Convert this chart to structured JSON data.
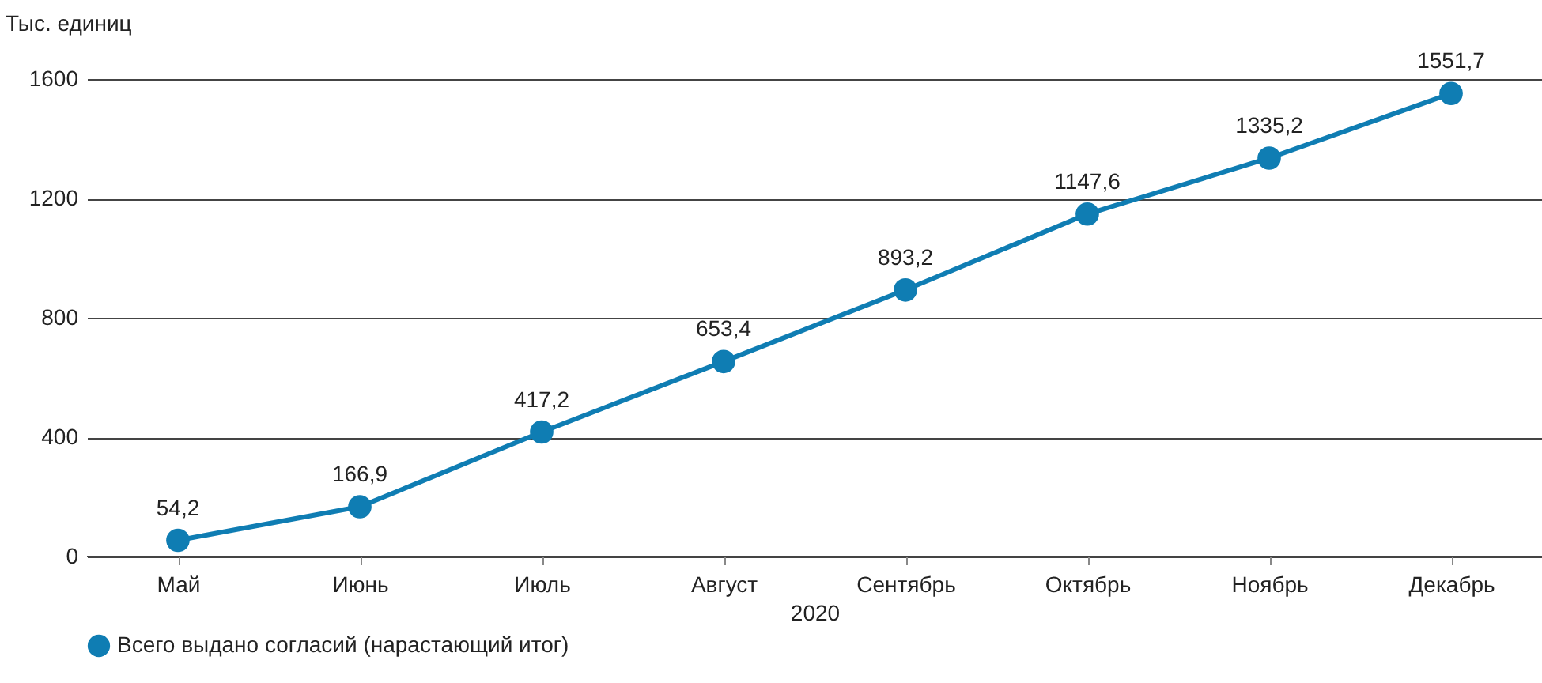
{
  "chart_data": {
    "type": "line",
    "ylabel": "Тыс. единиц",
    "xlabel": "2020",
    "categories": [
      "Май",
      "Июнь",
      "Июль",
      "Август",
      "Сентябрь",
      "Октябрь",
      "Ноябрь",
      "Декабрь"
    ],
    "series": [
      {
        "name": "Всего выдано согласий (нарастающий итог)",
        "color": "#0f7db3",
        "values": [
          54.2,
          166.9,
          417.2,
          653.4,
          893.2,
          1147.6,
          1335.2,
          1551.7
        ],
        "value_labels": [
          "54,2",
          "166,9",
          "417,2",
          "653,4",
          "893,2",
          "1147,6",
          "1335,2",
          "1551,7"
        ]
      }
    ],
    "ylim": [
      0,
      1600
    ],
    "yticks": [
      0,
      400,
      800,
      1200,
      1600
    ],
    "grid": "y",
    "legend": "bottom",
    "marker": "circle",
    "line_style": "solid"
  }
}
